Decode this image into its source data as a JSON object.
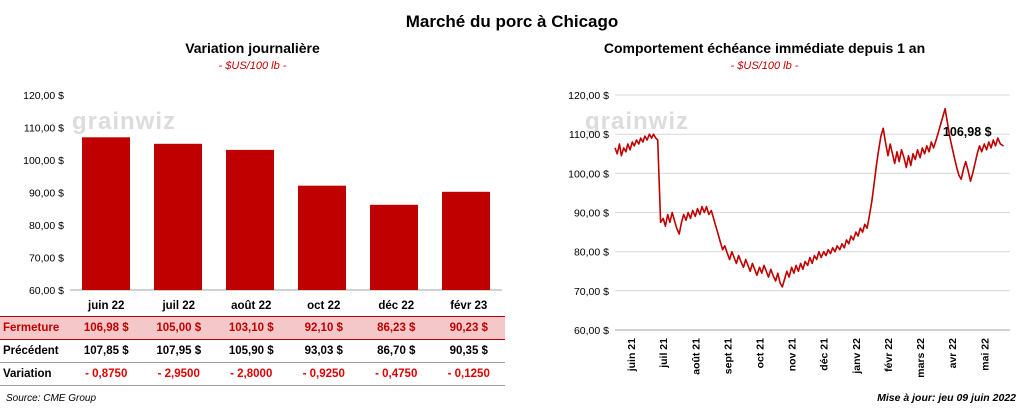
{
  "page_title": "Marché du porc à Chicago",
  "watermark": "grainwiz",
  "footer_update": "Mise à jour: jeu 09 juin 2022",
  "colors": {
    "accent": "#C00000",
    "variation_text": "#E00000",
    "highlight_bg": "#F4C7C8",
    "grid": "#D9D9D9",
    "axis": "#A6A6A6",
    "watermark": "#DCDCDC"
  },
  "left_panel": {
    "title": "Variation journalière",
    "subtitle": "- $US/100 lb -",
    "source": "Source: CME Group",
    "table": {
      "rows": [
        {
          "label": "Fermeture",
          "style": "fermeture",
          "values": [
            "106,98  $",
            "105,00  $",
            "103,10  $",
            "92,10  $",
            "86,23  $",
            "90,23  $"
          ]
        },
        {
          "label": "Précédent",
          "style": "precedent",
          "values": [
            "107,85  $",
            "107,95  $",
            "105,90  $",
            "93,03  $",
            "86,70  $",
            "90,35  $"
          ]
        },
        {
          "label": "Variation",
          "style": "variation",
          "values": [
            "- 0,8750",
            "- 2,9500",
            "- 2,8000",
            "- 0,9250",
            "- 0,4750",
            "- 0,1250"
          ]
        }
      ]
    }
  },
  "right_panel": {
    "title": "Comportement échéance immédiate depuis 1 an",
    "subtitle": "- $US/100 lb -",
    "end_label": "106,98 $"
  },
  "chart_data": [
    {
      "type": "bar",
      "title": "Variation journalière",
      "subtitle": "- $US/100 lb -",
      "categories": [
        "juin 22",
        "juil 22",
        "août 22",
        "oct 22",
        "déc 22",
        "févr 23"
      ],
      "values": [
        106.98,
        105.0,
        103.1,
        92.1,
        86.23,
        90.23
      ],
      "ylim": [
        60,
        120
      ],
      "ytick_step": 10,
      "y_tick_labels": [
        "120,00 $",
        "110,00 $",
        "100,00 $",
        "90,00 $",
        "80,00 $",
        "70,00 $",
        "60,00 $"
      ],
      "bar_color": "#C00000",
      "grid": false
    },
    {
      "type": "line",
      "title": "Comportement échéance immédiate depuis 1 an",
      "subtitle": "- $US/100 lb -",
      "x_tick_labels": [
        "juin 21",
        "juil 21",
        "août 21",
        "sept 21",
        "oct 21",
        "nov 21",
        "déc 21",
        "janv 22",
        "févr 22",
        "mars 22",
        "avr 22",
        "mai 22"
      ],
      "xlim": [
        0,
        12.3
      ],
      "ylim": [
        60,
        120
      ],
      "ytick_step": 10,
      "y_tick_labels": [
        "120,00 $",
        "110,00 $",
        "100,00 $",
        "90,00 $",
        "80,00 $",
        "70,00 $",
        "60,00 $"
      ],
      "line_color": "#C00000",
      "grid": true,
      "end_label": "106,98 $",
      "points": [
        [
          0.0,
          106.5
        ],
        [
          0.07,
          105.0
        ],
        [
          0.14,
          107.5
        ],
        [
          0.2,
          104.5
        ],
        [
          0.27,
          106.5
        ],
        [
          0.34,
          105.5
        ],
        [
          0.4,
          107.5
        ],
        [
          0.47,
          106.0
        ],
        [
          0.54,
          108.0
        ],
        [
          0.6,
          107.0
        ],
        [
          0.67,
          108.5
        ],
        [
          0.74,
          107.5
        ],
        [
          0.8,
          109.0
        ],
        [
          0.87,
          108.0
        ],
        [
          0.93,
          109.5
        ],
        [
          1.0,
          108.5
        ],
        [
          1.07,
          110.0
        ],
        [
          1.14,
          109.0
        ],
        [
          1.2,
          110.0
        ],
        [
          1.27,
          109.0
        ],
        [
          1.33,
          108.5
        ],
        [
          1.38,
          97.0
        ],
        [
          1.42,
          87.5
        ],
        [
          1.5,
          88.5
        ],
        [
          1.57,
          86.5
        ],
        [
          1.64,
          89.5
        ],
        [
          1.71,
          87.5
        ],
        [
          1.78,
          90.0
        ],
        [
          1.85,
          88.0
        ],
        [
          1.92,
          86.0
        ],
        [
          2.0,
          84.5
        ],
        [
          2.07,
          87.5
        ],
        [
          2.14,
          89.5
        ],
        [
          2.21,
          88.0
        ],
        [
          2.28,
          90.0
        ],
        [
          2.35,
          88.5
        ],
        [
          2.42,
          90.5
        ],
        [
          2.5,
          89.0
        ],
        [
          2.57,
          91.0
        ],
        [
          2.64,
          89.5
        ],
        [
          2.71,
          91.5
        ],
        [
          2.78,
          90.0
        ],
        [
          2.85,
          91.5
        ],
        [
          2.92,
          89.5
        ],
        [
          3.0,
          90.5
        ],
        [
          3.07,
          88.5
        ],
        [
          3.14,
          86.5
        ],
        [
          3.21,
          84.5
        ],
        [
          3.28,
          82.5
        ],
        [
          3.35,
          80.5
        ],
        [
          3.42,
          81.5
        ],
        [
          3.5,
          79.5
        ],
        [
          3.57,
          78.0
        ],
        [
          3.64,
          80.0
        ],
        [
          3.71,
          78.5
        ],
        [
          3.78,
          77.0
        ],
        [
          3.85,
          79.0
        ],
        [
          3.92,
          77.5
        ],
        [
          4.0,
          76.0
        ],
        [
          4.07,
          78.0
        ],
        [
          4.14,
          76.5
        ],
        [
          4.21,
          75.0
        ],
        [
          4.28,
          77.0
        ],
        [
          4.35,
          75.5
        ],
        [
          4.42,
          74.0
        ],
        [
          4.5,
          76.0
        ],
        [
          4.57,
          74.5
        ],
        [
          4.64,
          76.5
        ],
        [
          4.71,
          75.0
        ],
        [
          4.78,
          73.5
        ],
        [
          4.85,
          75.5
        ],
        [
          4.92,
          74.0
        ],
        [
          5.0,
          72.5
        ],
        [
          5.07,
          74.5
        ],
        [
          5.14,
          72.0
        ],
        [
          5.21,
          71.0
        ],
        [
          5.28,
          73.0
        ],
        [
          5.35,
          75.0
        ],
        [
          5.42,
          73.5
        ],
        [
          5.5,
          76.0
        ],
        [
          5.57,
          74.5
        ],
        [
          5.64,
          76.5
        ],
        [
          5.71,
          75.0
        ],
        [
          5.78,
          77.0
        ],
        [
          5.85,
          75.5
        ],
        [
          5.92,
          77.5
        ],
        [
          6.0,
          76.5
        ],
        [
          6.07,
          78.5
        ],
        [
          6.14,
          77.0
        ],
        [
          6.21,
          79.0
        ],
        [
          6.28,
          78.0
        ],
        [
          6.35,
          80.0
        ],
        [
          6.42,
          78.5
        ],
        [
          6.5,
          80.0
        ],
        [
          6.57,
          79.0
        ],
        [
          6.64,
          80.5
        ],
        [
          6.71,
          79.5
        ],
        [
          6.78,
          81.0
        ],
        [
          6.85,
          80.0
        ],
        [
          6.92,
          81.5
        ],
        [
          7.0,
          80.5
        ],
        [
          7.07,
          82.0
        ],
        [
          7.14,
          81.0
        ],
        [
          7.21,
          83.0
        ],
        [
          7.28,
          82.0
        ],
        [
          7.35,
          84.0
        ],
        [
          7.42,
          83.0
        ],
        [
          7.5,
          85.0
        ],
        [
          7.57,
          84.0
        ],
        [
          7.64,
          86.0
        ],
        [
          7.71,
          85.0
        ],
        [
          7.78,
          87.0
        ],
        [
          7.85,
          86.0
        ],
        [
          7.92,
          89.0
        ],
        [
          8.0,
          93.0
        ],
        [
          8.07,
          97.5
        ],
        [
          8.14,
          102.0
        ],
        [
          8.21,
          106.0
        ],
        [
          8.28,
          109.5
        ],
        [
          8.35,
          111.5
        ],
        [
          8.42,
          108.0
        ],
        [
          8.5,
          104.5
        ],
        [
          8.57,
          107.5
        ],
        [
          8.64,
          105.0
        ],
        [
          8.71,
          102.5
        ],
        [
          8.78,
          105.5
        ],
        [
          8.85,
          103.0
        ],
        [
          8.92,
          106.0
        ],
        [
          9.0,
          104.0
        ],
        [
          9.07,
          101.5
        ],
        [
          9.14,
          104.5
        ],
        [
          9.21,
          102.0
        ],
        [
          9.28,
          105.0
        ],
        [
          9.35,
          103.5
        ],
        [
          9.42,
          106.0
        ],
        [
          9.5,
          104.0
        ],
        [
          9.57,
          106.5
        ],
        [
          9.64,
          105.0
        ],
        [
          9.71,
          107.0
        ],
        [
          9.78,
          105.5
        ],
        [
          9.85,
          108.0
        ],
        [
          9.92,
          106.5
        ],
        [
          10.0,
          108.5
        ],
        [
          10.07,
          110.5
        ],
        [
          10.14,
          112.5
        ],
        [
          10.21,
          114.5
        ],
        [
          10.28,
          116.5
        ],
        [
          10.35,
          113.0
        ],
        [
          10.42,
          109.5
        ],
        [
          10.5,
          106.5
        ],
        [
          10.57,
          104.0
        ],
        [
          10.64,
          101.5
        ],
        [
          10.71,
          99.5
        ],
        [
          10.78,
          98.5
        ],
        [
          10.85,
          101.0
        ],
        [
          10.92,
          103.0
        ],
        [
          11.0,
          100.5
        ],
        [
          11.07,
          98.0
        ],
        [
          11.14,
          100.0
        ],
        [
          11.21,
          102.5
        ],
        [
          11.28,
          105.0
        ],
        [
          11.35,
          107.0
        ],
        [
          11.42,
          105.5
        ],
        [
          11.5,
          107.5
        ],
        [
          11.57,
          106.0
        ],
        [
          11.64,
          108.0
        ],
        [
          11.71,
          106.5
        ],
        [
          11.78,
          108.5
        ],
        [
          11.85,
          107.0
        ],
        [
          11.92,
          109.0
        ],
        [
          12.0,
          107.5
        ],
        [
          12.1,
          106.98
        ]
      ]
    }
  ]
}
